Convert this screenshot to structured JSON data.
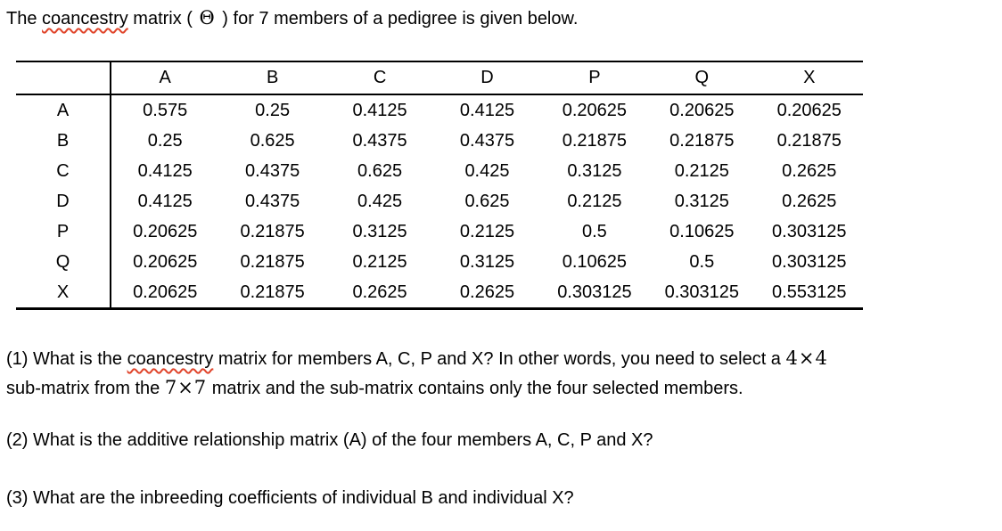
{
  "colors": {
    "text": "#000000",
    "background": "#ffffff",
    "spellcheck_squiggle": "#e0442a",
    "table_border": "#000000"
  },
  "title": {
    "pre": "The ",
    "spellcheck_word": "coancestry",
    "mid": " matrix ( ",
    "theta_symbol": "Θ",
    "post": " ) for 7 members of a pedigree is given below."
  },
  "matrix_table": {
    "corner_label": "",
    "col_headers": [
      "A",
      "B",
      "C",
      "D",
      "P",
      "Q",
      "X"
    ],
    "rows": [
      {
        "label": "A",
        "values": [
          "0.575",
          "0.25",
          "0.4125",
          "0.4125",
          "0.20625",
          "0.20625",
          "0.20625"
        ]
      },
      {
        "label": "B",
        "values": [
          "0.25",
          "0.625",
          "0.4375",
          "0.4375",
          "0.21875",
          "0.21875",
          "0.21875"
        ]
      },
      {
        "label": "C",
        "values": [
          "0.4125",
          "0.4375",
          "0.625",
          "0.425",
          "0.3125",
          "0.2125",
          "0.2625"
        ]
      },
      {
        "label": "D",
        "values": [
          "0.4125",
          "0.4375",
          "0.425",
          "0.625",
          "0.2125",
          "0.3125",
          "0.2625"
        ]
      },
      {
        "label": "P",
        "values": [
          "0.20625",
          "0.21875",
          "0.3125",
          "0.2125",
          "0.5",
          "0.10625",
          "0.303125"
        ]
      },
      {
        "label": "Q",
        "values": [
          "0.20625",
          "0.21875",
          "0.2125",
          "0.3125",
          "0.10625",
          "0.5",
          "0.303125"
        ]
      },
      {
        "label": "X",
        "values": [
          "0.20625",
          "0.21875",
          "0.2625",
          "0.2625",
          "0.303125",
          "0.303125",
          "0.553125"
        ]
      }
    ]
  },
  "questions": {
    "q1": {
      "line1_pre": "(1) What is the ",
      "line1_spellcheck_word": "coancestry",
      "line1_mid": " matrix for members A, C, P and X? In other words, you need to select a ",
      "line1_math": "4×4",
      "line2_pre": "sub-matrix from the ",
      "line2_math": "7×7",
      "line2_post": " matrix and the sub-matrix contains only the four selected members."
    },
    "q2": "(2) What is the additive relationship matrix (A) of the four members A, C, P and X?",
    "q3": "(3) What are the inbreeding coefficients of individual B and individual X?"
  }
}
